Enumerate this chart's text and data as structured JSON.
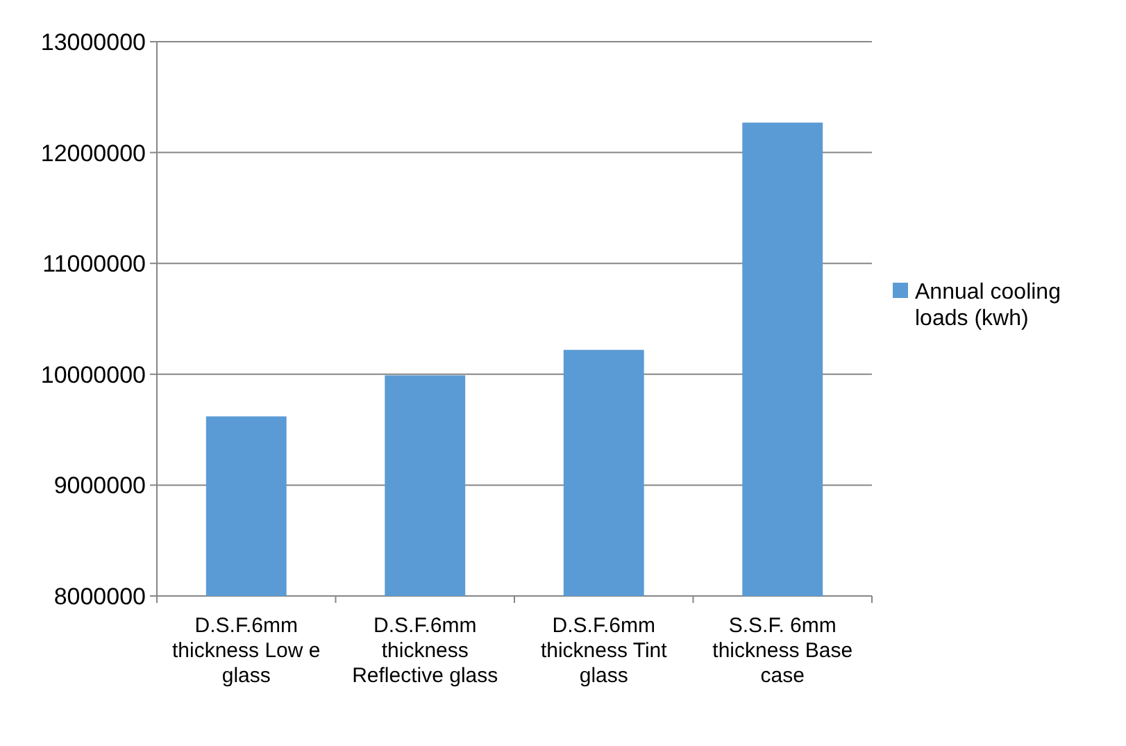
{
  "chart_data": {
    "type": "bar",
    "categories": [
      "D.S.F.6mm thickness Low e glass",
      "D.S.F.6mm thickness Reflective glass",
      "D.S.F.6mm thickness Tint glass",
      "S.S.F. 6mm thickness Base case"
    ],
    "series": [
      {
        "name": "Annual cooling loads (kwh)",
        "color": "#5b9bd5",
        "values": [
          9620000,
          9990000,
          10220000,
          12270000
        ]
      }
    ],
    "ylim": [
      8000000,
      13000000
    ],
    "yticks": [
      8000000,
      9000000,
      10000000,
      11000000,
      12000000,
      13000000
    ],
    "grid": "y",
    "legend": "right"
  }
}
